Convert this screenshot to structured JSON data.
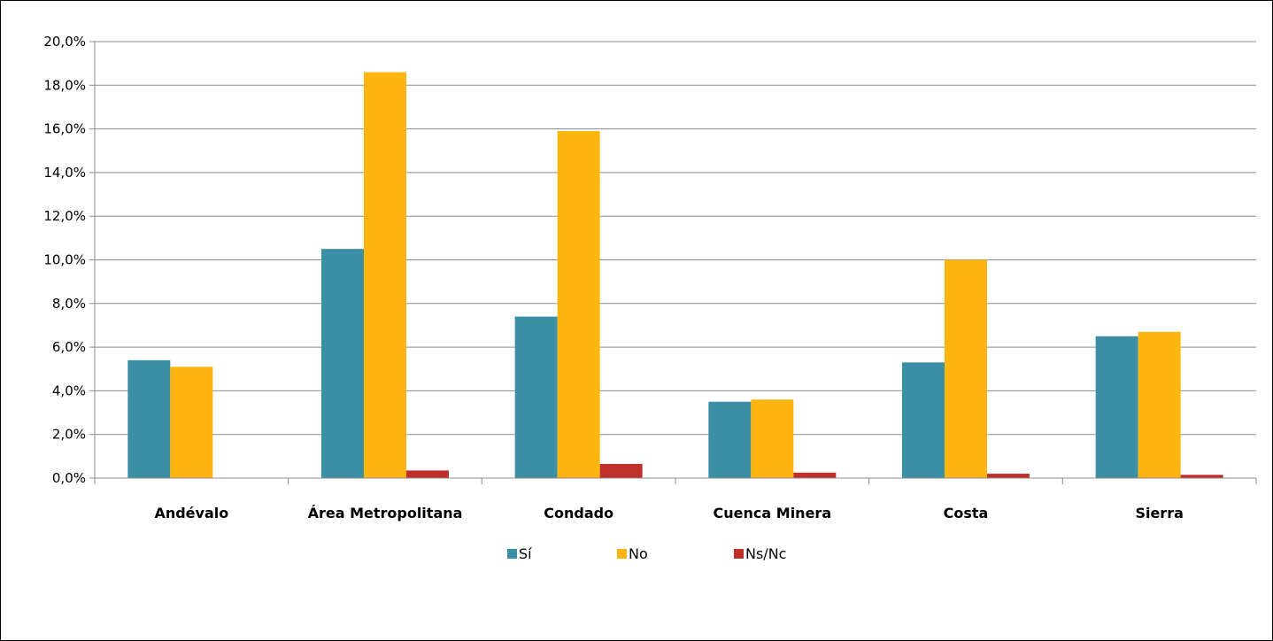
{
  "chart_data": {
    "type": "bar",
    "categories": [
      "Andévalo",
      "Área Metropolitana",
      "Condado",
      "Cuenca Minera",
      "Costa",
      "Sierra"
    ],
    "series": [
      {
        "name": "Sí",
        "color": "#3a8fa4",
        "values": [
          5.4,
          10.5,
          7.4,
          3.5,
          5.3,
          6.5
        ]
      },
      {
        "name": "No",
        "color": "#ffb50f",
        "values": [
          5.1,
          18.6,
          15.9,
          3.6,
          10.0,
          6.7
        ]
      },
      {
        "name": "Ns/Nc",
        "color": "#c0302b",
        "values": [
          0.0,
          0.35,
          0.65,
          0.25,
          0.2,
          0.15
        ]
      }
    ],
    "yticks": [
      "0,0%",
      "2,0%",
      "4,0%",
      "6,0%",
      "8,0%",
      "10,0%",
      "12,0%",
      "14,0%",
      "16,0%",
      "18,0%",
      "20,0%"
    ],
    "ylim": [
      0,
      20
    ],
    "grid": true,
    "legend_position": "bottom"
  }
}
